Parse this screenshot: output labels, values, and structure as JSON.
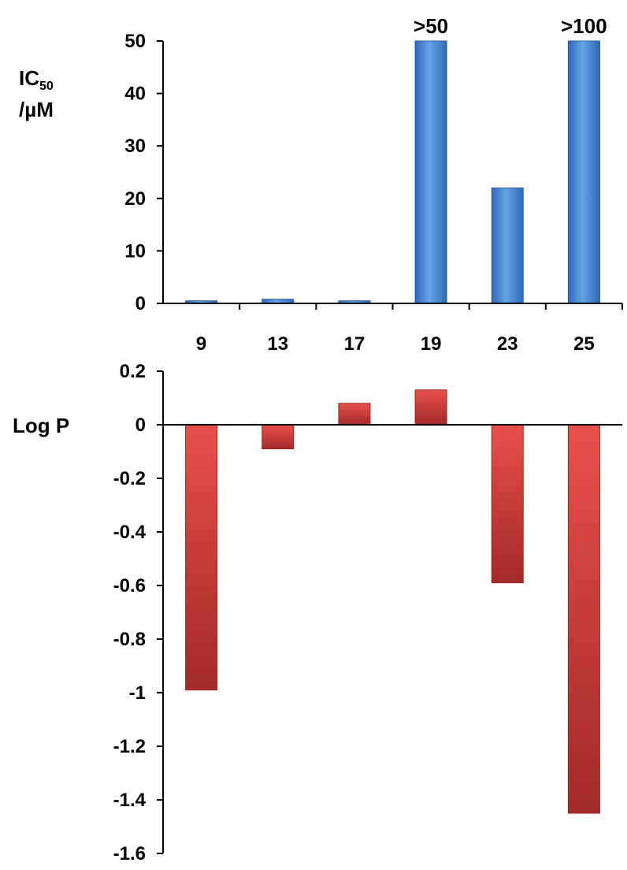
{
  "colors": {
    "top_bar_light": "#6aa3e6",
    "top_bar_dark": "#2e67b8",
    "bottom_bar_light": "#e8504a",
    "bottom_bar_dark": "#a32a28",
    "axis": "#000000"
  },
  "chart_data": [
    {
      "type": "bar",
      "categories": [
        "9",
        "13",
        "17",
        "19",
        "23",
        "25"
      ],
      "values": [
        0.5,
        0.8,
        0.5,
        50,
        22,
        50
      ],
      "data_labels": [
        "",
        "",
        "",
        ">50",
        "",
        ">100"
      ],
      "ylabel_main": "IC",
      "ylabel_sub": "50",
      "ylabel_unit": "/µM",
      "ylim": [
        0,
        50
      ],
      "yticks": [
        "0",
        "10",
        "20",
        "30",
        "40",
        "50"
      ],
      "ytick_values": [
        0,
        10,
        20,
        30,
        40,
        50
      ],
      "grid": false
    },
    {
      "type": "bar",
      "categories": [
        "9",
        "13",
        "17",
        "19",
        "23",
        "25"
      ],
      "values": [
        -0.99,
        -0.09,
        0.08,
        0.13,
        -0.59,
        -1.45
      ],
      "ylabel": "Log P",
      "ylim": [
        -1.6,
        0.2
      ],
      "yticks": [
        "0.2",
        "0",
        "-0.2",
        "-0.4",
        "-0.6",
        "-0.8",
        "-1",
        "-1.2",
        "-1.4",
        "-1.6"
      ],
      "ytick_values": [
        0.2,
        0,
        -0.2,
        -0.4,
        -0.6,
        -0.8,
        -1,
        -1.2,
        -1.4,
        -1.6
      ],
      "grid": false
    }
  ]
}
